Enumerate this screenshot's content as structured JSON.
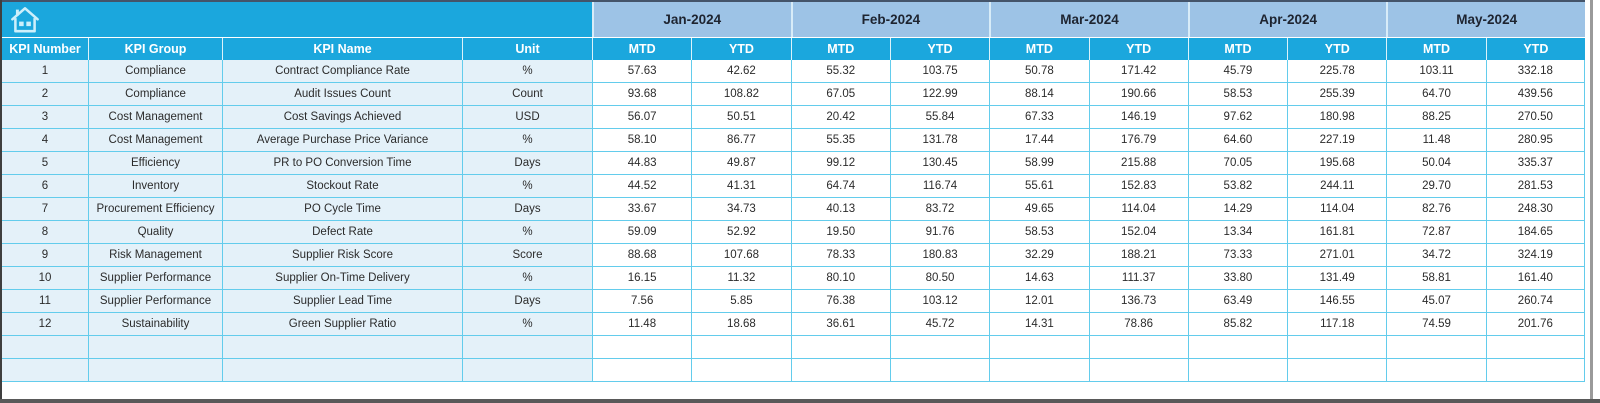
{
  "table": {
    "corner_icon": "home-icon",
    "columns": [
      "KPI Number",
      "KPI Group",
      "KPI Name",
      "Unit"
    ],
    "months": [
      "Jan-2024",
      "Feb-2024",
      "Mar-2024",
      "Apr-2024",
      "May-2024"
    ],
    "sub_columns": [
      "MTD",
      "YTD"
    ],
    "rows": [
      {
        "number": "1",
        "group": "Compliance",
        "name": "Contract Compliance Rate",
        "unit": "%",
        "values": [
          "57.63",
          "42.62",
          "55.32",
          "103.75",
          "50.78",
          "171.42",
          "45.79",
          "225.78",
          "103.11",
          "332.18"
        ]
      },
      {
        "number": "2",
        "group": "Compliance",
        "name": "Audit Issues Count",
        "unit": "Count",
        "values": [
          "93.68",
          "108.82",
          "67.05",
          "122.99",
          "88.14",
          "190.66",
          "58.53",
          "255.39",
          "64.70",
          "439.56"
        ]
      },
      {
        "number": "3",
        "group": "Cost Management",
        "name": "Cost Savings Achieved",
        "unit": "USD",
        "values": [
          "56.07",
          "50.51",
          "20.42",
          "55.84",
          "67.33",
          "146.19",
          "97.62",
          "180.98",
          "88.25",
          "270.50"
        ]
      },
      {
        "number": "4",
        "group": "Cost Management",
        "name": "Average Purchase Price Variance",
        "unit": "%",
        "values": [
          "58.10",
          "86.77",
          "55.35",
          "131.78",
          "17.44",
          "176.79",
          "64.60",
          "227.19",
          "11.48",
          "280.95"
        ]
      },
      {
        "number": "5",
        "group": "Efficiency",
        "name": "PR to PO Conversion Time",
        "unit": "Days",
        "values": [
          "44.83",
          "49.87",
          "99.12",
          "130.45",
          "58.99",
          "215.88",
          "70.05",
          "195.68",
          "50.04",
          "335.37"
        ]
      },
      {
        "number": "6",
        "group": "Inventory",
        "name": "Stockout Rate",
        "unit": "%",
        "values": [
          "44.52",
          "41.31",
          "64.74",
          "116.74",
          "55.61",
          "152.83",
          "53.82",
          "244.11",
          "29.70",
          "281.53"
        ]
      },
      {
        "number": "7",
        "group": "Procurement Efficiency",
        "name": "PO Cycle Time",
        "unit": "Days",
        "values": [
          "33.67",
          "34.73",
          "40.13",
          "83.72",
          "49.65",
          "114.04",
          "14.29",
          "114.04",
          "82.76",
          "248.30"
        ]
      },
      {
        "number": "8",
        "group": "Quality",
        "name": "Defect Rate",
        "unit": "%",
        "values": [
          "59.09",
          "52.92",
          "19.50",
          "91.76",
          "58.53",
          "152.04",
          "13.34",
          "161.81",
          "72.87",
          "184.65"
        ]
      },
      {
        "number": "9",
        "group": "Risk Management",
        "name": "Supplier Risk Score",
        "unit": "Score",
        "values": [
          "88.68",
          "107.68",
          "78.33",
          "180.83",
          "32.29",
          "188.21",
          "73.33",
          "271.01",
          "34.72",
          "324.19"
        ]
      },
      {
        "number": "10",
        "group": "Supplier Performance",
        "name": "Supplier On-Time Delivery",
        "unit": "%",
        "values": [
          "16.15",
          "11.32",
          "80.10",
          "80.50",
          "14.63",
          "111.37",
          "33.80",
          "131.49",
          "58.81",
          "161.40"
        ]
      },
      {
        "number": "11",
        "group": "Supplier Performance",
        "name": "Supplier Lead Time",
        "unit": "Days",
        "values": [
          "7.56",
          "5.85",
          "76.38",
          "103.12",
          "12.01",
          "136.73",
          "63.49",
          "146.55",
          "45.07",
          "260.74"
        ]
      },
      {
        "number": "12",
        "group": "Sustainability",
        "name": "Green Supplier Ratio",
        "unit": "%",
        "values": [
          "11.48",
          "18.68",
          "36.61",
          "45.72",
          "14.31",
          "78.86",
          "85.82",
          "117.18",
          "74.59",
          "201.76"
        ]
      }
    ],
    "empty_row_count": 2
  },
  "colors": {
    "header_cyan": "#1BA7DD",
    "month_band_blue": "#9DC3E6",
    "left_column_tint": "#E4F1F9",
    "cell_border_cyan": "#63CCEC",
    "outer_border_dark": "#595959",
    "header_text": "#FFFFFF",
    "month_text": "#1E2430",
    "cell_text": "#2B2B2B"
  }
}
